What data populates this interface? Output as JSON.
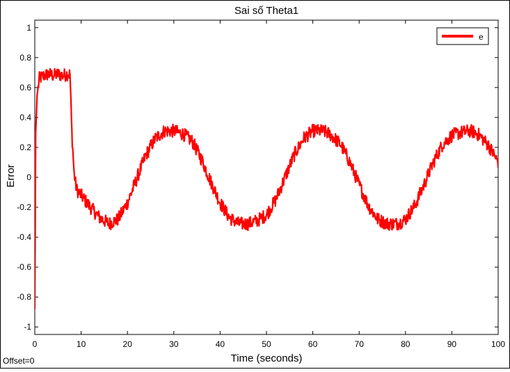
{
  "chart_data": {
    "type": "line",
    "title": "Sai số Theta1",
    "xlabel": "Time (seconds)",
    "ylabel": "Error",
    "xlim": [
      0,
      100
    ],
    "ylim": [
      -1.05,
      1.05
    ],
    "xticks": [
      0,
      10,
      20,
      30,
      40,
      50,
      60,
      70,
      80,
      90,
      100
    ],
    "yticks": [
      -1,
      -0.8,
      -0.6,
      -0.4,
      -0.2,
      0,
      0.2,
      0.4,
      0.6,
      0.8,
      1
    ],
    "grid": false,
    "legend": {
      "position": "top-right",
      "entries": [
        "e"
      ]
    },
    "footer": "Offset=0",
    "series": [
      {
        "name": "e",
        "color": "#ff0000",
        "x": [
          0,
          0.2,
          0.5,
          1,
          2,
          3,
          4,
          5,
          6,
          7,
          7.6,
          8,
          8.5,
          9,
          10,
          12,
          14,
          16,
          18,
          20,
          22,
          24,
          26,
          28,
          30,
          31,
          32,
          34,
          36,
          38,
          40,
          42,
          44,
          46,
          47,
          48,
          50,
          52,
          54,
          56,
          58,
          60,
          62,
          63,
          64,
          66,
          68,
          70,
          72,
          74,
          76,
          78,
          79,
          80,
          82,
          84,
          86,
          88,
          90,
          92,
          94,
          95,
          96,
          98,
          100
        ],
        "y": [
          -0.88,
          0.3,
          0.55,
          0.66,
          0.68,
          0.69,
          0.68,
          0.69,
          0.68,
          0.69,
          0.69,
          0.3,
          0.02,
          -0.08,
          -0.12,
          -0.2,
          -0.27,
          -0.31,
          -0.28,
          -0.17,
          -0.01,
          0.15,
          0.26,
          0.31,
          0.31,
          0.3,
          0.29,
          0.24,
          0.12,
          -0.03,
          -0.17,
          -0.27,
          -0.31,
          -0.31,
          -0.3,
          -0.29,
          -0.25,
          -0.15,
          0.0,
          0.15,
          0.26,
          0.31,
          0.31,
          0.3,
          0.28,
          0.22,
          0.1,
          -0.05,
          -0.19,
          -0.28,
          -0.31,
          -0.31,
          -0.3,
          -0.28,
          -0.19,
          -0.05,
          0.1,
          0.22,
          0.28,
          0.3,
          0.31,
          0.3,
          0.28,
          0.21,
          0.1
        ]
      }
    ]
  }
}
